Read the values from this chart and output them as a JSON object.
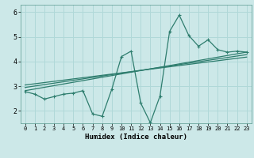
{
  "xlabel": "Humidex (Indice chaleur)",
  "xlim": [
    -0.5,
    23.5
  ],
  "ylim": [
    1.5,
    6.3
  ],
  "yticks": [
    2,
    3,
    4,
    5,
    6
  ],
  "xticks": [
    0,
    1,
    2,
    3,
    4,
    5,
    6,
    7,
    8,
    9,
    10,
    11,
    12,
    13,
    14,
    15,
    16,
    17,
    18,
    19,
    20,
    21,
    22,
    23
  ],
  "bg_color": "#cce8e8",
  "grid_color": "#b0d8d8",
  "line_color": "#2e7d6e",
  "line1_x": [
    0,
    1,
    2,
    3,
    4,
    5,
    6,
    7,
    8,
    9,
    10,
    11,
    12,
    13,
    14,
    15,
    16,
    17,
    18,
    19,
    20,
    21,
    22,
    23
  ],
  "line1_y": [
    2.78,
    2.68,
    2.48,
    2.58,
    2.68,
    2.72,
    2.82,
    1.88,
    1.78,
    2.88,
    4.2,
    4.42,
    2.32,
    1.52,
    2.6,
    5.22,
    5.88,
    5.05,
    4.62,
    4.88,
    4.48,
    4.38,
    4.42,
    4.38
  ],
  "line2_x": [
    0,
    23
  ],
  "line2_y": [
    2.82,
    4.38
  ],
  "line3_x": [
    0,
    23
  ],
  "line3_y": [
    2.95,
    4.28
  ],
  "line4_x": [
    0,
    23
  ],
  "line4_y": [
    3.05,
    4.18
  ]
}
